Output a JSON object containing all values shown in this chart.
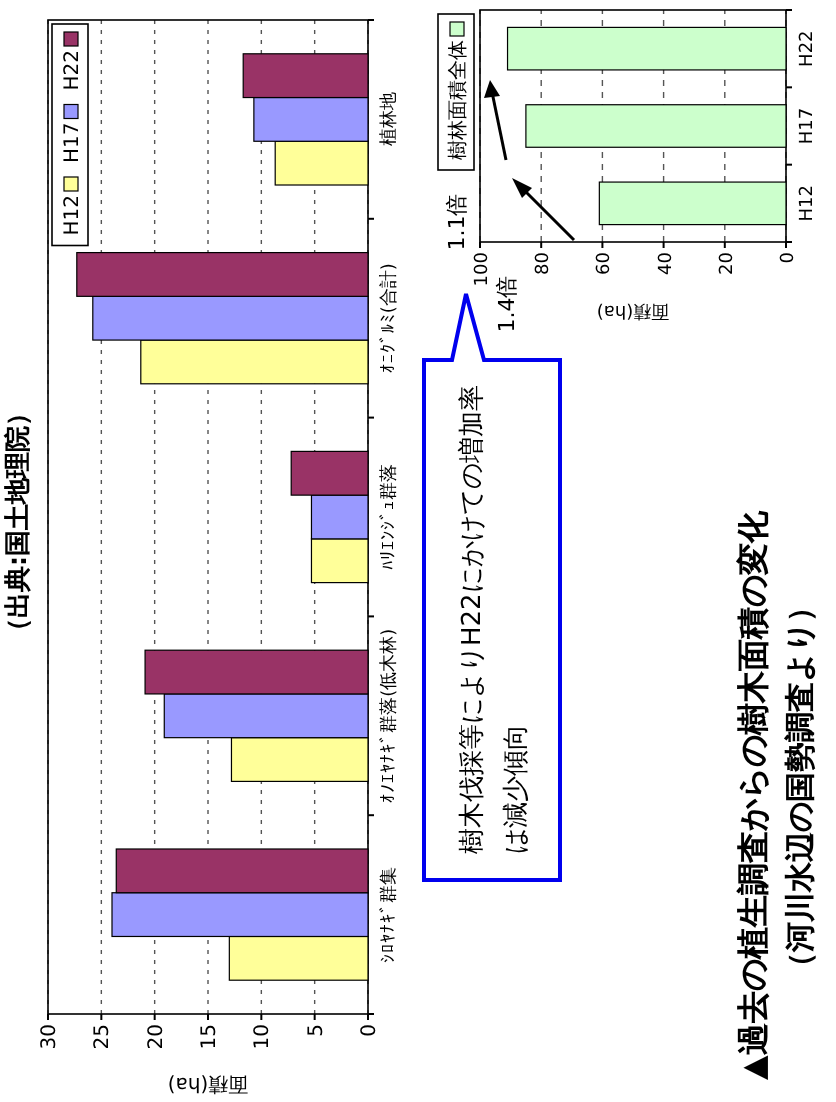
{
  "chart_data": [
    {
      "type": "bar",
      "orientation": "horizontal",
      "xlabel": "面積(ha)",
      "categories": [
        "植林地",
        "ｵﾆｸﾞﾙﾐ(合計)",
        "ﾊﾘｴﾝｼﾞｭ群落",
        "ｵﾉｴﾔﾅｷﾞ群落(低木林)",
        "ｼﾛﾔﾅｷﾞ群集"
      ],
      "series": [
        {
          "name": "H12",
          "color": "#ffff99",
          "values": [
            8.7,
            21.3,
            5.3,
            12.8,
            13
          ]
        },
        {
          "name": "H17",
          "color": "#9999ff",
          "values": [
            10.7,
            25.8,
            5.3,
            19.1,
            24
          ]
        },
        {
          "name": "H22",
          "color": "#993366",
          "values": [
            11.7,
            27.3,
            7.2,
            20.9,
            23.6
          ]
        }
      ],
      "xlim": [
        30,
        0
      ],
      "xticks": [
        30,
        25,
        20,
        15,
        10,
        5,
        0
      ],
      "grid": "x",
      "legend": "top left",
      "annotations": [
        "（出典:国土地理院）"
      ]
    },
    {
      "type": "bar",
      "orientation": "horizontal",
      "title": "▲過去の植生調査からの樹木面積の変化",
      "subtitle": "（河川水辺の国勢調査より）",
      "xlabel": "面積(ha)",
      "categories": [
        "H22",
        "H17",
        "H12"
      ],
      "series": [
        {
          "name": "樹林面積全体",
          "color": "#ccffcc",
          "values": [
            91,
            85,
            61
          ]
        }
      ],
      "xlim": [
        100,
        0
      ],
      "xticks": [
        100,
        80,
        60,
        40,
        20,
        0
      ],
      "grid": "x",
      "legend": "top left",
      "annotations": [
        "樹木伐採等によりH22にかけての増加率は減少傾向",
        "1.1倍",
        "1.4倍"
      ]
    }
  ]
}
